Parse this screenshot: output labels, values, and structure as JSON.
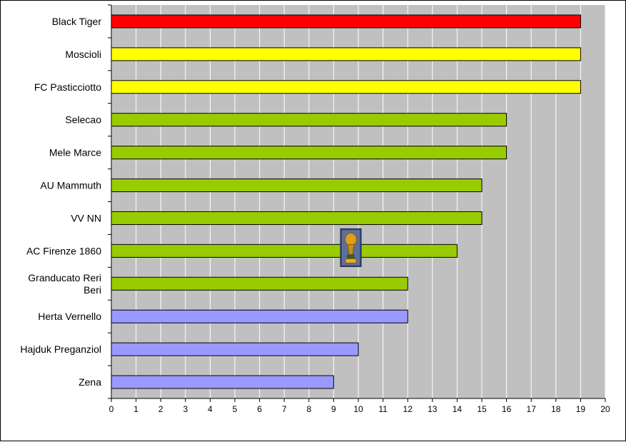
{
  "chart_data": {
    "type": "bar",
    "orientation": "horizontal",
    "categories": [
      "Black Tiger",
      "Moscioli",
      "FC Pasticciotto",
      "Selecao",
      "Mele Marce",
      "AU Mammuth",
      "VV NN",
      "AC Firenze 1860",
      "Granducato Reri Beri",
      "Herta Vernello",
      "Hajduk Preganziol",
      "Zena"
    ],
    "category_label_lines": [
      [
        "Black Tiger"
      ],
      [
        "Moscioli"
      ],
      [
        "FC Pasticciotto"
      ],
      [
        "Selecao"
      ],
      [
        "Mele Marce"
      ],
      [
        "AU Mammuth"
      ],
      [
        "VV NN"
      ],
      [
        "AC Firenze 1860"
      ],
      [
        "Granducato Reri",
        "Beri"
      ],
      [
        "Herta Vernello"
      ],
      [
        "Hajduk Preganziol"
      ],
      [
        "Zena"
      ]
    ],
    "values": [
      19,
      19,
      19,
      16,
      16,
      15,
      15,
      14,
      12,
      12,
      10,
      9
    ],
    "bar_colors": [
      "#ff0000",
      "#ffff00",
      "#ffff00",
      "#99cc00",
      "#99cc00",
      "#99cc00",
      "#99cc00",
      "#99cc00",
      "#99cc00",
      "#9999ff",
      "#9999ff",
      "#9999ff"
    ],
    "xlim": [
      0,
      20
    ],
    "x_ticks": [
      0,
      1,
      2,
      3,
      4,
      5,
      6,
      7,
      8,
      9,
      10,
      11,
      12,
      13,
      14,
      15,
      16,
      17,
      18,
      19,
      20
    ],
    "grid": true,
    "plot_background": "#c0c0c0",
    "gridline_color": "#ffffff",
    "decoration": {
      "icon": "trophy-icon",
      "near_category": "AC Firenze 1860"
    },
    "title": "",
    "xlabel": "",
    "ylabel": ""
  }
}
